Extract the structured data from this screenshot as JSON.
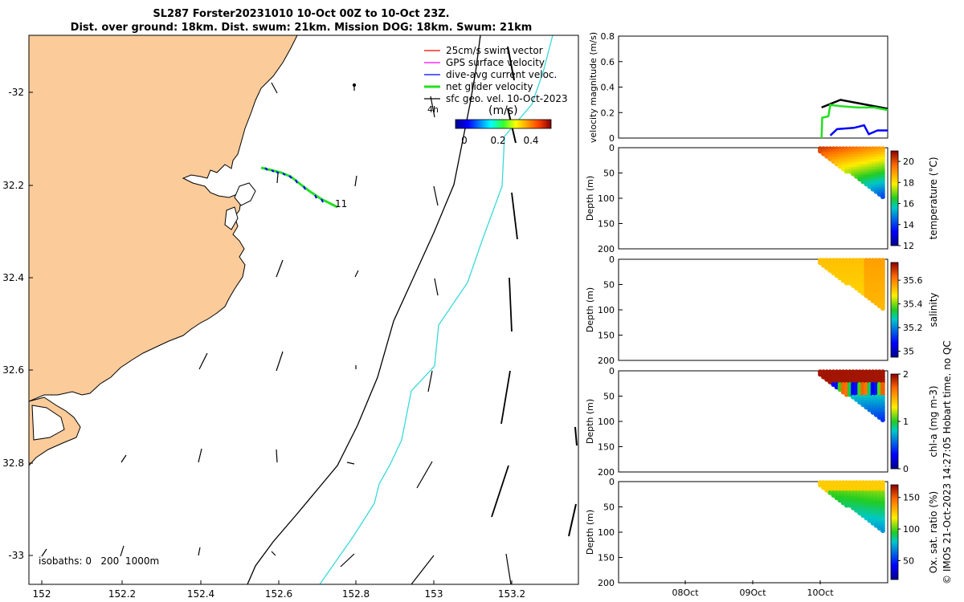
{
  "title_line1": "SL287 Forster20231010 10-Oct 00Z to 10-Oct 23Z.",
  "title_line2": "Dist. over ground: 18km. Dist. swum: 21km. Mission DOG: 18km. Swum: 21km",
  "credit": "© IMOS 21-Oct-2023 14:27:05 Hobart time. no QC",
  "colors": {
    "land": "#fbcb9a",
    "isobath_200": "#000000",
    "isobath_1000": "#3ad9d9",
    "net_glider": "#22e022",
    "swim": "#ff0000",
    "gps": "#ff00ff",
    "dive_avg": "#0000ff"
  },
  "chart_data": [
    {
      "type": "map",
      "x_ticks": [
        "152",
        "152.2",
        "152.4",
        "152.6",
        "152.8",
        "153",
        "153.2"
      ],
      "y_ticks": [
        "-32",
        "32.2",
        "32.4",
        "32.6",
        "32.8",
        "-33"
      ],
      "legend": [
        {
          "label": "25cm/s swim vector",
          "color": "#ff0000"
        },
        {
          "label": "GPS surface velocity",
          "color": "#ff00ff"
        },
        {
          "label": "dive-avg current veloc.",
          "color": "#0000ff"
        },
        {
          "label": "net glider velocity",
          "color": "#22e022"
        },
        {
          "label": "sfc geo. vel. 10-Oct-2023",
          "color": "#000000"
        }
      ],
      "colorbar_unit": "(m/s)",
      "colorbar_ticks": [
        "0",
        "0.2",
        "0.4"
      ],
      "arrow_scale_label": "4h",
      "track_end_label": "11",
      "isobaths_label": "isobaths: 0   200  1000m"
    },
    {
      "type": "line",
      "ylabel": "velocity magnitude (m/s)",
      "ylim": [
        0,
        0.8
      ],
      "y_ticks": [
        "0",
        "0.2",
        "0.4",
        "0.6",
        "0.8"
      ],
      "series_values": {
        "surface": [
          [
            10.02,
            0.24
          ],
          [
            10.3,
            0.3
          ],
          [
            10.6,
            0.27
          ],
          [
            10.9,
            0.24
          ],
          [
            11.0,
            0.23
          ]
        ],
        "net": [
          [
            10.02,
            0.0
          ],
          [
            10.03,
            0.16
          ],
          [
            10.12,
            0.17
          ],
          [
            10.15,
            0.26
          ],
          [
            10.3,
            0.25
          ],
          [
            10.55,
            0.24
          ],
          [
            10.8,
            0.24
          ],
          [
            11.0,
            0.22
          ]
        ],
        "dive": [
          [
            10.15,
            0.02
          ],
          [
            10.25,
            0.07
          ],
          [
            10.5,
            0.08
          ],
          [
            10.65,
            0.1
          ],
          [
            10.72,
            0.03
          ],
          [
            10.85,
            0.06
          ],
          [
            11.0,
            0.06
          ]
        ]
      }
    },
    {
      "type": "heatmap",
      "ylabel": "Depth (m)",
      "clabel": "temperature (°C)",
      "y_ticks": [
        "0",
        "50",
        "100",
        "150",
        "200"
      ],
      "c_ticks": [
        "12",
        "14",
        "16",
        "18",
        "20"
      ],
      "clim": [
        12,
        21
      ]
    },
    {
      "type": "heatmap",
      "ylabel": "Depth (m)",
      "clabel": "salinity",
      "y_ticks": [
        "0",
        "50",
        "100",
        "150",
        "200"
      ],
      "c_ticks": [
        "35",
        "35.2",
        "35.4",
        "35.6"
      ],
      "clim": [
        34.95,
        35.75
      ]
    },
    {
      "type": "heatmap",
      "ylabel": "Depth (m)",
      "clabel": "chl-a (mg m-3)",
      "y_ticks": [
        "0",
        "50",
        "100",
        "150",
        "200"
      ],
      "c_ticks": [
        "0",
        "1",
        "2"
      ],
      "clim": [
        0,
        2
      ]
    },
    {
      "type": "heatmap",
      "ylabel": "Depth (m)",
      "clabel": "Ox. sat. ratio (%)",
      "y_ticks": [
        "0",
        "50",
        "100",
        "150",
        "200"
      ],
      "c_ticks": [
        "50",
        "100",
        "150"
      ],
      "clim": [
        20,
        170
      ],
      "x_ticks": [
        "08Oct",
        "09Oct",
        "10Oct"
      ]
    }
  ]
}
